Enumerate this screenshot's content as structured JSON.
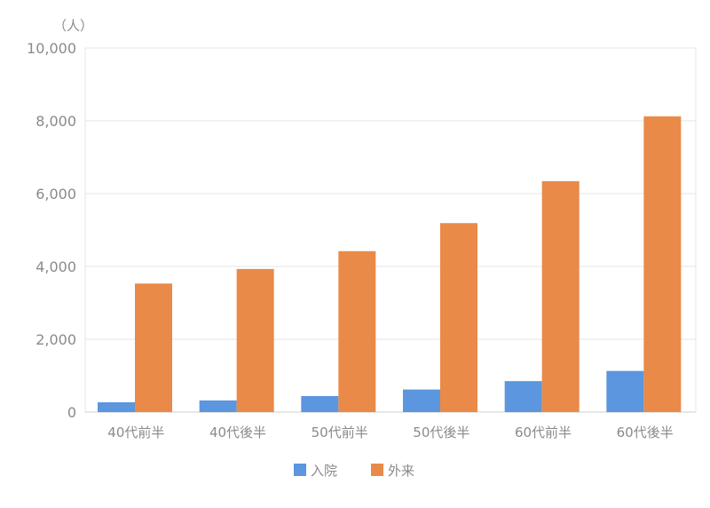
{
  "chart_data": {
    "type": "bar",
    "unit_label": "（人）",
    "categories": [
      "40代前半",
      "40代後半",
      "50代前半",
      "50代後半",
      "60代前半",
      "60代後半"
    ],
    "series": [
      {
        "name": "入院",
        "color": "#5b96de",
        "values": [
          270,
          320,
          440,
          620,
          850,
          1130
        ]
      },
      {
        "name": "外来",
        "color": "#e98a48",
        "values": [
          3530,
          3930,
          4420,
          5190,
          6340,
          8120
        ]
      }
    ],
    "ylim": [
      0,
      10000
    ],
    "yticks": [
      "0",
      "2,000",
      "4,000",
      "6,000",
      "8,000",
      "10,000"
    ],
    "ytick_values": [
      0,
      2000,
      4000,
      6000,
      8000,
      10000
    ],
    "grid": true,
    "legend_position": "bottom-center"
  }
}
